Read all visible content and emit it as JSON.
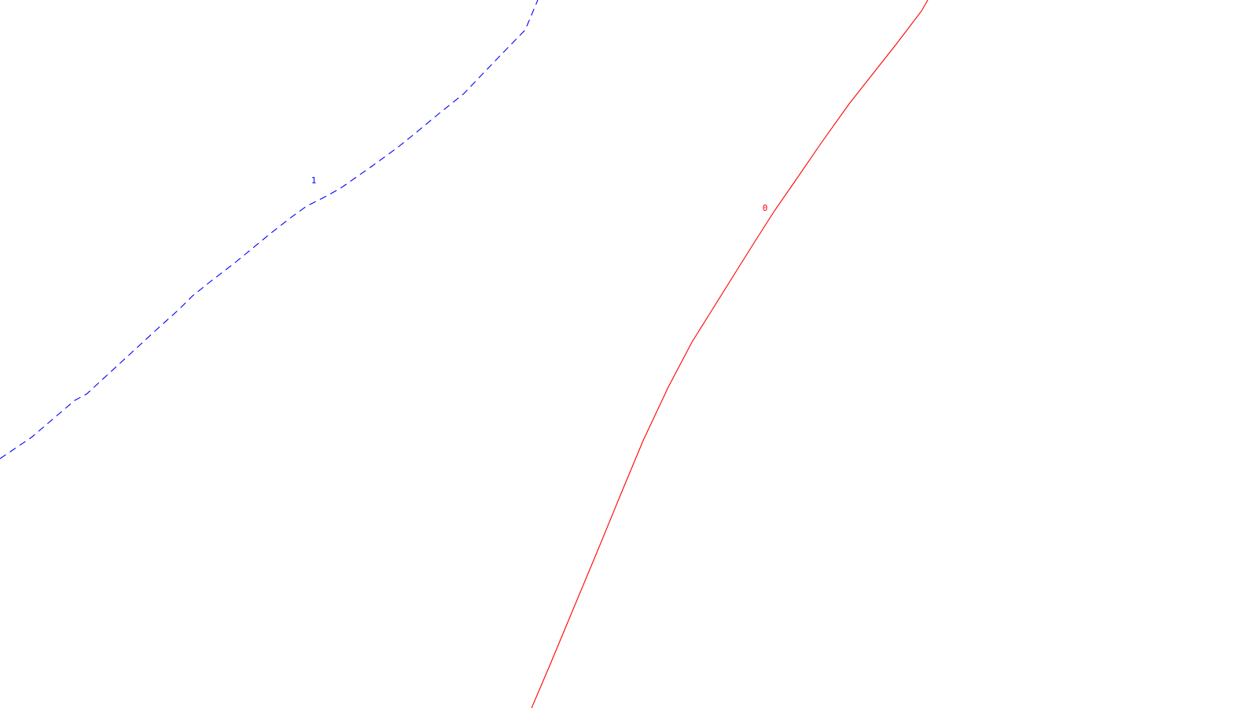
{
  "map": {
    "background": "#ffffff",
    "contours": [
      {
        "id": "contour-1",
        "level_label": "1",
        "color": "#0000ff",
        "style": "dashed"
      },
      {
        "id": "contour-0",
        "level_label": "0",
        "color": "#ff0000",
        "style": "solid"
      }
    ]
  }
}
